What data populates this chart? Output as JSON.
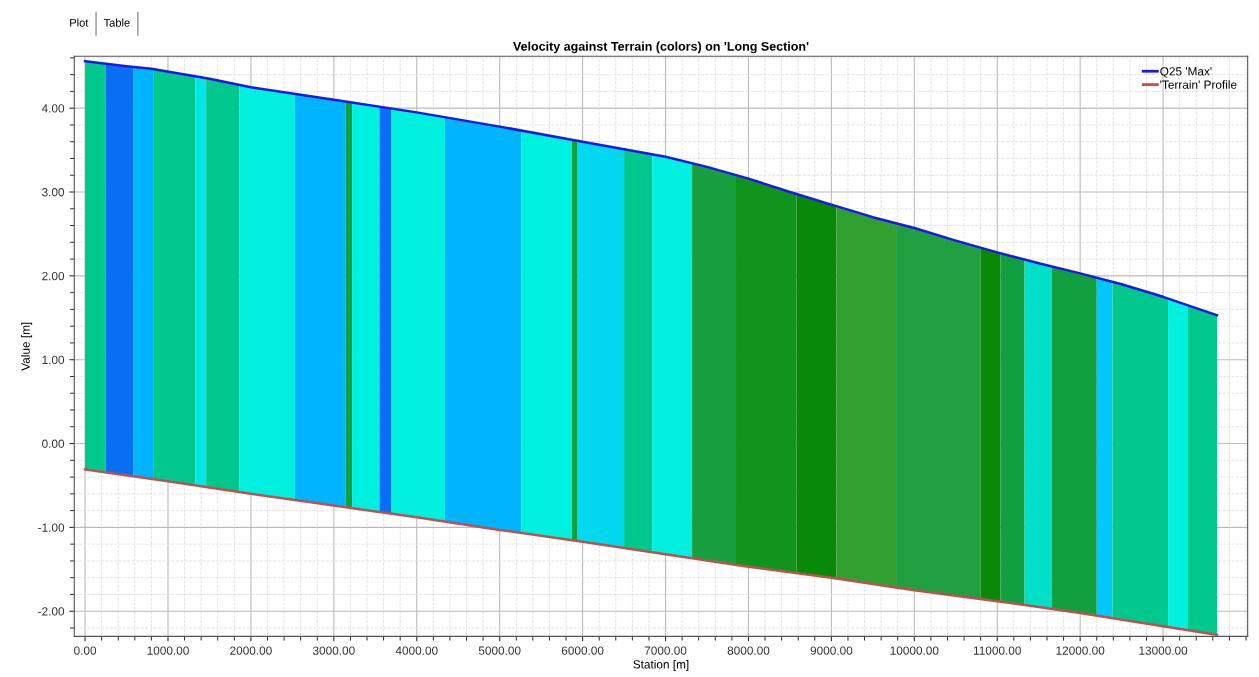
{
  "chart_data": {
    "type": "line",
    "title": "Velocity against Terrain (colors) on 'Long Section'",
    "xlabel": "Station [m]",
    "ylabel": "Value [m]",
    "annotations": [
      "Plot",
      "Table"
    ],
    "xlim": [
      -130,
      14020
    ],
    "ylim": [
      -2.3,
      4.62
    ],
    "xticks": [
      {
        "value": 0,
        "label": "0.00"
      },
      {
        "value": 1000,
        "label": "1000.00"
      },
      {
        "value": 2000,
        "label": "2000.00"
      },
      {
        "value": 3000,
        "label": "3000.00"
      },
      {
        "value": 4000,
        "label": "4000.00"
      },
      {
        "value": 5000,
        "label": "5000.00"
      },
      {
        "value": 6000,
        "label": "6000.00"
      },
      {
        "value": 7000,
        "label": "7000.00"
      },
      {
        "value": 8000,
        "label": "8000.00"
      },
      {
        "value": 9000,
        "label": "9000.00"
      },
      {
        "value": 10000,
        "label": "10000.00"
      },
      {
        "value": 11000,
        "label": "11000.00"
      },
      {
        "value": 12000,
        "label": "12000.00"
      },
      {
        "value": 13000,
        "label": "13000.00"
      }
    ],
    "yticks": [
      {
        "value": -2,
        "label": "-2.00"
      },
      {
        "value": -1,
        "label": "-1.00"
      },
      {
        "value": 0,
        "label": "0.00"
      },
      {
        "value": 1,
        "label": "1.00"
      },
      {
        "value": 2,
        "label": "2.00"
      },
      {
        "value": 3,
        "label": "3.00"
      },
      {
        "value": 4,
        "label": "4.00"
      }
    ],
    "grid": true,
    "legend": "top right",
    "line_style": "solid",
    "marker": "none",
    "series": [
      {
        "name": "Q25 'Max'",
        "color": "#1a1ae6",
        "x": [
          0,
          500,
          800,
          1500,
          2000,
          3000,
          4000,
          5000,
          6000,
          7000,
          7500,
          8000,
          8500,
          9000,
          9500,
          10000,
          10500,
          11000,
          11500,
          12000,
          12500,
          13000,
          13650
        ],
        "values": [
          4.56,
          4.5,
          4.47,
          4.35,
          4.25,
          4.1,
          3.95,
          3.78,
          3.6,
          3.42,
          3.3,
          3.16,
          3.0,
          2.85,
          2.7,
          2.57,
          2.42,
          2.28,
          2.15,
          2.03,
          1.9,
          1.75,
          1.53
        ]
      },
      {
        "name": "'Terrain' Profile",
        "color": "#c0504d",
        "x": [
          0,
          1000,
          2000,
          3000,
          4000,
          5000,
          6000,
          7000,
          8000,
          9000,
          10000,
          11000,
          12000,
          13000,
          13650
        ],
        "values": [
          -0.31,
          -0.45,
          -0.6,
          -0.74,
          -0.88,
          -1.03,
          -1.17,
          -1.32,
          -1.47,
          -1.6,
          -1.75,
          -1.88,
          -2.02,
          -2.18,
          -2.28
        ]
      }
    ],
    "bands": [
      {
        "axis": "x",
        "from": 0,
        "to": 250,
        "color": "#00c88c"
      },
      {
        "axis": "x",
        "from": 250,
        "to": 580,
        "color": "#0a6ef5"
      },
      {
        "axis": "x",
        "from": 580,
        "to": 830,
        "color": "#00b4ff"
      },
      {
        "axis": "x",
        "from": 830,
        "to": 1330,
        "color": "#00c88c"
      },
      {
        "axis": "x",
        "from": 1330,
        "to": 1460,
        "color": "#00e6e6"
      },
      {
        "axis": "x",
        "from": 1460,
        "to": 1860,
        "color": "#00c88c"
      },
      {
        "axis": "x",
        "from": 1860,
        "to": 2530,
        "color": "#00f0e0"
      },
      {
        "axis": "x",
        "from": 2530,
        "to": 3140,
        "color": "#00b4ff"
      },
      {
        "axis": "x",
        "from": 3140,
        "to": 3220,
        "color": "#10a040"
      },
      {
        "axis": "x",
        "from": 3220,
        "to": 3550,
        "color": "#00f0e0"
      },
      {
        "axis": "x",
        "from": 3550,
        "to": 3690,
        "color": "#0a6ef5"
      },
      {
        "axis": "x",
        "from": 3690,
        "to": 4340,
        "color": "#00f0e0"
      },
      {
        "axis": "x",
        "from": 4340,
        "to": 5260,
        "color": "#00b4ff"
      },
      {
        "axis": "x",
        "from": 5260,
        "to": 5870,
        "color": "#00f0e0"
      },
      {
        "axis": "x",
        "from": 5870,
        "to": 5940,
        "color": "#10a040"
      },
      {
        "axis": "x",
        "from": 5940,
        "to": 6500,
        "color": "#00d8f0"
      },
      {
        "axis": "x",
        "from": 6500,
        "to": 6840,
        "color": "#00c88c"
      },
      {
        "axis": "x",
        "from": 6840,
        "to": 7320,
        "color": "#00f0e0"
      },
      {
        "axis": "x",
        "from": 7320,
        "to": 7850,
        "color": "#18a040"
      },
      {
        "axis": "x",
        "from": 7850,
        "to": 8580,
        "color": "#10941c"
      },
      {
        "axis": "x",
        "from": 8580,
        "to": 9060,
        "color": "#088a08"
      },
      {
        "axis": "x",
        "from": 9060,
        "to": 9780,
        "color": "#30a030"
      },
      {
        "axis": "x",
        "from": 9780,
        "to": 10800,
        "color": "#20a040"
      },
      {
        "axis": "x",
        "from": 10800,
        "to": 11040,
        "color": "#088a08"
      },
      {
        "axis": "x",
        "from": 11040,
        "to": 11330,
        "color": "#10a040"
      },
      {
        "axis": "x",
        "from": 11330,
        "to": 11660,
        "color": "#00e0c8"
      },
      {
        "axis": "x",
        "from": 11660,
        "to": 12200,
        "color": "#10a040"
      },
      {
        "axis": "x",
        "from": 12200,
        "to": 12390,
        "color": "#00c8ff"
      },
      {
        "axis": "x",
        "from": 12390,
        "to": 13060,
        "color": "#00c88c"
      },
      {
        "axis": "x",
        "from": 13060,
        "to": 13300,
        "color": "#00f0e0"
      },
      {
        "axis": "x",
        "from": 13300,
        "to": 13650,
        "color": "#00c88c"
      }
    ]
  }
}
